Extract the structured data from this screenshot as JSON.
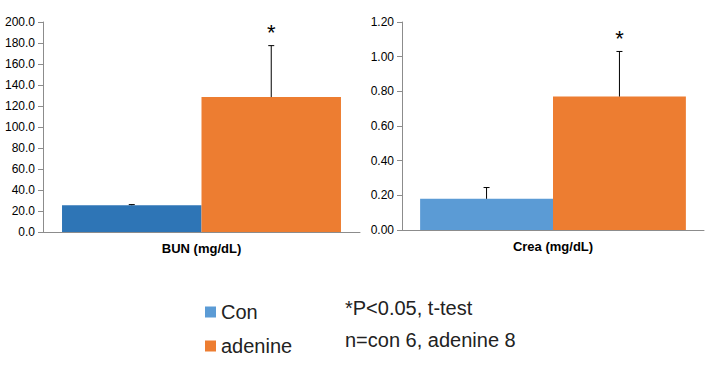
{
  "chart_data": [
    {
      "type": "bar",
      "categories": [
        "BUN (mg/dL)"
      ],
      "series": [
        {
          "name": "Con",
          "color": "#2e75b6",
          "values": [
            25.5
          ],
          "errors": [
            0.6
          ]
        },
        {
          "name": "adenine",
          "color": "#ed7d31",
          "values": [
            128.5
          ],
          "errors": [
            49.0
          ],
          "annotation": "*"
        }
      ],
      "ylim": [
        0,
        200
      ],
      "yticks": [
        {
          "value": 0,
          "label": "0.0"
        },
        {
          "value": 20,
          "label": "20.0"
        },
        {
          "value": 40,
          "label": "40.0"
        },
        {
          "value": 60,
          "label": "60.0"
        },
        {
          "value": 80,
          "label": "80.0"
        },
        {
          "value": 100,
          "label": "100.0"
        },
        {
          "value": 120,
          "label": "120.0"
        },
        {
          "value": 140,
          "label": "140.0"
        },
        {
          "value": 160,
          "label": "160.0"
        },
        {
          "value": 180,
          "label": "180.0"
        },
        {
          "value": 200,
          "label": "200.0"
        }
      ],
      "grid": false
    },
    {
      "type": "bar",
      "categories": [
        "Crea (mg/dL)"
      ],
      "series": [
        {
          "name": "Con",
          "color": "#5b9bd5",
          "values": [
            0.18
          ],
          "errors": [
            0.065
          ]
        },
        {
          "name": "adenine",
          "color": "#ed7d31",
          "values": [
            0.77
          ],
          "errors": [
            0.26
          ],
          "annotation": "*"
        }
      ],
      "ylim": [
        0,
        1.2
      ],
      "yticks": [
        {
          "value": 0,
          "label": "0.00"
        },
        {
          "value": 0.2,
          "label": "0.20"
        },
        {
          "value": 0.4,
          "label": "0.40"
        },
        {
          "value": 0.6,
          "label": "0.60"
        },
        {
          "value": 0.8,
          "label": "0.80"
        },
        {
          "value": 1.0,
          "label": "1.00"
        },
        {
          "value": 1.2,
          "label": "1.20"
        }
      ],
      "grid": false,
      "legend": "bottom",
      "annotations": [
        "*P<0.05, t-test",
        "n=con 6, adenine 8"
      ]
    }
  ]
}
